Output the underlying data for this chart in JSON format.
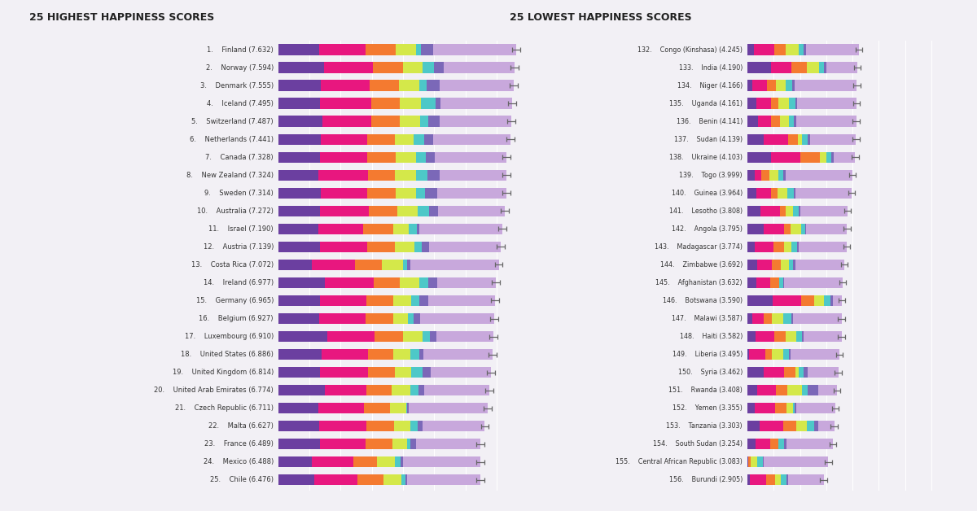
{
  "title_left": "25 HIGHEST HAPPINESS SCORES",
  "title_right": "25 LOWEST HAPPINESS SCORES",
  "bg_color": "#f2f0f5",
  "seg_colors": [
    "#6b3fa0",
    "#e8177f",
    "#f47a30",
    "#d4e84a",
    "#4dc8c8",
    "#7b68b8",
    "#c8a8dc"
  ],
  "highest": [
    {
      "rank": 1,
      "name": "Finland (7.632)",
      "gdp": 1.305,
      "social": 1.499,
      "health": 0.961,
      "freedom": 0.662,
      "generosity": 0.153,
      "trust": 0.393,
      "dystopia": 2.659
    },
    {
      "rank": 2,
      "name": "Norway (7.594)",
      "gdp": 1.456,
      "social": 1.582,
      "health": 0.956,
      "freedom": 0.635,
      "generosity": 0.362,
      "trust": 0.317,
      "dystopia": 2.286
    },
    {
      "rank": 3,
      "name": "Denmark (7.555)",
      "gdp": 1.351,
      "social": 1.59,
      "health": 0.92,
      "freedom": 0.658,
      "generosity": 0.252,
      "trust": 0.401,
      "dystopia": 2.383
    },
    {
      "rank": 4,
      "name": "Iceland (7.495)",
      "gdp": 1.343,
      "social": 1.644,
      "health": 0.914,
      "freedom": 0.677,
      "generosity": 0.476,
      "trust": 0.153,
      "dystopia": 2.287
    },
    {
      "rank": 5,
      "name": "Switzerland (7.487)",
      "gdp": 1.42,
      "social": 1.549,
      "health": 0.927,
      "freedom": 0.66,
      "generosity": 0.256,
      "trust": 0.357,
      "dystopia": 2.318
    },
    {
      "rank": 6,
      "name": "Netherlands (7.441)",
      "gdp": 1.361,
      "social": 1.488,
      "health": 0.878,
      "freedom": 0.614,
      "generosity": 0.333,
      "trust": 0.283,
      "dystopia": 2.484
    },
    {
      "rank": 7,
      "name": "Canada (7.328)",
      "gdp": 1.33,
      "social": 1.532,
      "health": 0.896,
      "freedom": 0.653,
      "generosity": 0.321,
      "trust": 0.291,
      "dystopia": 2.305
    },
    {
      "rank": 8,
      "name": "New Zealand (7.324)",
      "gdp": 1.268,
      "social": 1.601,
      "health": 0.876,
      "freedom": 0.669,
      "generosity": 0.365,
      "trust": 0.389,
      "dystopia": 2.156
    },
    {
      "rank": 9,
      "name": "Sweden (7.314)",
      "gdp": 1.355,
      "social": 1.501,
      "health": 0.913,
      "freedom": 0.659,
      "generosity": 0.285,
      "trust": 0.383,
      "dystopia": 2.218
    },
    {
      "rank": 10,
      "name": "Australia (7.272)",
      "gdp": 1.34,
      "social": 1.573,
      "health": 0.91,
      "freedom": 0.647,
      "generosity": 0.361,
      "trust": 0.302,
      "dystopia": 2.139
    },
    {
      "rank": 11,
      "name": "Israel (7.190)",
      "gdp": 1.276,
      "social": 1.455,
      "health": 0.953,
      "freedom": 0.495,
      "generosity": 0.261,
      "trust": 0.082,
      "dystopia": 2.668
    },
    {
      "rank": 12,
      "name": "Austria (7.139)",
      "gdp": 1.341,
      "social": 1.504,
      "health": 0.891,
      "freedom": 0.617,
      "generosity": 0.239,
      "trust": 0.255,
      "dystopia": 2.292
    },
    {
      "rank": 13,
      "name": "Costa Rica (7.072)",
      "gdp": 1.074,
      "social": 1.383,
      "health": 0.871,
      "freedom": 0.663,
      "generosity": 0.144,
      "trust": 0.093,
      "dystopia": 2.844
    },
    {
      "rank": 14,
      "name": "Ireland (6.977)",
      "gdp": 1.499,
      "social": 1.553,
      "health": 0.851,
      "freedom": 0.612,
      "generosity": 0.298,
      "trust": 0.296,
      "dystopia": 1.868
    },
    {
      "rank": 15,
      "name": "Germany (6.965)",
      "gdp": 1.34,
      "social": 1.474,
      "health": 0.861,
      "freedom": 0.586,
      "generosity": 0.273,
      "trust": 0.28,
      "dystopia": 2.151
    },
    {
      "rank": 16,
      "name": "Belgium (6.927)",
      "gdp": 1.306,
      "social": 1.483,
      "health": 0.896,
      "freedom": 0.473,
      "generosity": 0.189,
      "trust": 0.209,
      "dystopia": 2.371
    },
    {
      "rank": 17,
      "name": "Luxembourg (6.910)",
      "gdp": 1.576,
      "social": 1.52,
      "health": 0.896,
      "freedom": 0.632,
      "generosity": 0.238,
      "trust": 0.221,
      "dystopia": 1.827
    },
    {
      "rank": 18,
      "name": "United States (6.886)",
      "gdp": 1.398,
      "social": 1.471,
      "health": 0.819,
      "freedom": 0.547,
      "generosity": 0.291,
      "trust": 0.133,
      "dystopia": 2.227
    },
    {
      "rank": 19,
      "name": "United Kingdom (6.814)",
      "gdp": 1.333,
      "social": 1.538,
      "health": 0.862,
      "freedom": 0.524,
      "generosity": 0.362,
      "trust": 0.282,
      "dystopia": 1.913
    },
    {
      "rank": 20,
      "name": "United Arab Emirates (6.774)",
      "gdp": 1.503,
      "social": 1.31,
      "health": 0.825,
      "freedom": 0.598,
      "generosity": 0.262,
      "trust": 0.182,
      "dystopia": 2.094
    },
    {
      "rank": 21,
      "name": "Czech Republic (6.711)",
      "gdp": 1.269,
      "social": 1.487,
      "health": 0.831,
      "freedom": 0.519,
      "generosity": 0.036,
      "trust": 0.037,
      "dystopia": 2.532
    },
    {
      "rank": 22,
      "name": "Malta (6.627)",
      "gdp": 1.3,
      "social": 1.52,
      "health": 0.884,
      "freedom": 0.53,
      "generosity": 0.247,
      "trust": 0.153,
      "dystopia": 1.993
    },
    {
      "rank": 23,
      "name": "France (6.489)",
      "gdp": 1.324,
      "social": 1.472,
      "health": 0.861,
      "freedom": 0.481,
      "generosity": 0.105,
      "trust": 0.184,
      "dystopia": 2.062
    },
    {
      "rank": 24,
      "name": "Mexico (6.488)",
      "gdp": 1.07,
      "social": 1.323,
      "health": 0.779,
      "freedom": 0.571,
      "generosity": 0.187,
      "trust": 0.073,
      "dystopia": 2.485
    },
    {
      "rank": 25,
      "name": "Chile (6.476)",
      "gdp": 1.159,
      "social": 1.369,
      "health": 0.85,
      "freedom": 0.563,
      "generosity": 0.126,
      "trust": 0.064,
      "dystopia": 2.345
    }
  ],
  "lowest": [
    {
      "rank": 132,
      "name": "Congo (Kinshasa) (4.245)",
      "gdp": 0.261,
      "social": 0.76,
      "health": 0.449,
      "freedom": 0.495,
      "generosity": 0.19,
      "trust": 0.082,
      "dystopia": 2.008
    },
    {
      "rank": 133,
      "name": "India (4.190)",
      "gdp": 0.904,
      "social": 0.778,
      "health": 0.596,
      "freedom": 0.445,
      "generosity": 0.201,
      "trust": 0.073,
      "dystopia": 1.193
    },
    {
      "rank": 134,
      "name": "Niger (4.166)",
      "gdp": 0.191,
      "social": 0.555,
      "health": 0.327,
      "freedom": 0.381,
      "generosity": 0.254,
      "trust": 0.09,
      "dystopia": 2.368
    },
    {
      "rank": 135,
      "name": "Uganda (4.161)",
      "gdp": 0.332,
      "social": 0.57,
      "health": 0.267,
      "freedom": 0.408,
      "generosity": 0.252,
      "trust": 0.051,
      "dystopia": 2.281
    },
    {
      "rank": 136,
      "name": "Benin (4.141)",
      "gdp": 0.398,
      "social": 0.512,
      "health": 0.324,
      "freedom": 0.346,
      "generosity": 0.182,
      "trust": 0.088,
      "dystopia": 2.291
    },
    {
      "rank": 137,
      "name": "Sudan (4.139)",
      "gdp": 0.624,
      "social": 0.925,
      "health": 0.374,
      "freedom": 0.163,
      "generosity": 0.2,
      "trust": 0.096,
      "dystopia": 1.757
    },
    {
      "rank": 138,
      "name": "Ukraine (4.103)",
      "gdp": 0.886,
      "social": 1.134,
      "health": 0.742,
      "freedom": 0.257,
      "generosity": 0.187,
      "trust": 0.068,
      "dystopia": 0.829
    },
    {
      "rank": 139,
      "name": "Togo (3.999)",
      "gdp": 0.285,
      "social": 0.247,
      "health": 0.293,
      "freedom": 0.349,
      "generosity": 0.191,
      "trust": 0.081,
      "dystopia": 2.553
    },
    {
      "rank": 140,
      "name": "Guinea (3.964)",
      "gdp": 0.349,
      "social": 0.559,
      "health": 0.253,
      "freedom": 0.369,
      "generosity": 0.238,
      "trust": 0.059,
      "dystopia": 2.137
    },
    {
      "rank": 141,
      "name": "Lesotho (3.808)",
      "gdp": 0.489,
      "social": 0.756,
      "health": 0.226,
      "freedom": 0.268,
      "generosity": 0.204,
      "trust": 0.073,
      "dystopia": 1.792
    },
    {
      "rank": 142,
      "name": "Angola (3.795)",
      "gdp": 0.614,
      "social": 0.779,
      "health": 0.259,
      "freedom": 0.381,
      "generosity": 0.177,
      "trust": 0.034,
      "dystopia": 1.551
    },
    {
      "rank": 143,
      "name": "Madagascar (3.774)",
      "gdp": 0.274,
      "social": 0.727,
      "health": 0.401,
      "freedom": 0.259,
      "generosity": 0.218,
      "trust": 0.076,
      "dystopia": 1.819
    },
    {
      "rank": 144,
      "name": "Zimbabwe (3.692)",
      "gdp": 0.366,
      "social": 0.571,
      "health": 0.341,
      "freedom": 0.309,
      "generosity": 0.151,
      "trust": 0.079,
      "dystopia": 1.875
    },
    {
      "rank": 145,
      "name": "Afghanistan (3.632)",
      "gdp": 0.35,
      "social": 0.507,
      "health": 0.361,
      "freedom": 0.0,
      "generosity": 0.158,
      "trust": 0.025,
      "dystopia": 2.231
    },
    {
      "rank": 146,
      "name": "Botswana (3.590)",
      "gdp": 0.953,
      "social": 1.09,
      "health": 0.49,
      "freedom": 0.38,
      "generosity": 0.254,
      "trust": 0.095,
      "dystopia": 0.328
    },
    {
      "rank": 147,
      "name": "Malawi (3.587)",
      "gdp": 0.191,
      "social": 0.44,
      "health": 0.29,
      "freedom": 0.431,
      "generosity": 0.316,
      "trust": 0.081,
      "dystopia": 1.838
    },
    {
      "rank": 148,
      "name": "Haiti (3.582)",
      "gdp": 0.323,
      "social": 0.688,
      "health": 0.449,
      "freedom": 0.395,
      "generosity": 0.209,
      "trust": 0.078,
      "dystopia": 1.44
    },
    {
      "rank": 149,
      "name": "Liberia (3.495)",
      "gdp": 0.073,
      "social": 0.6,
      "health": 0.259,
      "freedom": 0.433,
      "generosity": 0.219,
      "trust": 0.048,
      "dystopia": 1.863
    },
    {
      "rank": 150,
      "name": "Syria (3.462)",
      "gdp": 0.619,
      "social": 0.778,
      "health": 0.44,
      "freedom": 0.11,
      "generosity": 0.201,
      "trust": 0.149,
      "dystopia": 1.165
    },
    {
      "rank": 151,
      "name": "Rwanda (3.408)",
      "gdp": 0.359,
      "social": 0.711,
      "health": 0.444,
      "freedom": 0.555,
      "generosity": 0.217,
      "trust": 0.411,
      "dystopia": 0.711
    },
    {
      "rank": 152,
      "name": "Yemen (3.355)",
      "gdp": 0.287,
      "social": 0.782,
      "health": 0.422,
      "freedom": 0.235,
      "generosity": 0.06,
      "trust": 0.064,
      "dystopia": 1.505
    },
    {
      "rank": 153,
      "name": "Tanzania (3.303)",
      "gdp": 0.476,
      "social": 0.885,
      "health": 0.499,
      "freedom": 0.417,
      "generosity": 0.276,
      "trust": 0.147,
      "dystopia": 0.603
    },
    {
      "rank": 154,
      "name": "South Sudan (3.254)",
      "gdp": 0.306,
      "social": 0.575,
      "health": 0.295,
      "freedom": 0.01,
      "generosity": 0.202,
      "trust": 0.107,
      "dystopia": 1.759
    },
    {
      "rank": 155,
      "name": "Central African Republic (3.083)",
      "gdp": 0.032,
      "social": 0.0,
      "health": 0.105,
      "freedom": 0.225,
      "generosity": 0.235,
      "trust": 0.035,
      "dystopia": 2.451
    },
    {
      "rank": 156,
      "name": "Burundi (2.905)",
      "gdp": 0.091,
      "social": 0.627,
      "health": 0.34,
      "freedom": 0.204,
      "generosity": 0.24,
      "trust": 0.06,
      "dystopia": 1.343
    }
  ]
}
